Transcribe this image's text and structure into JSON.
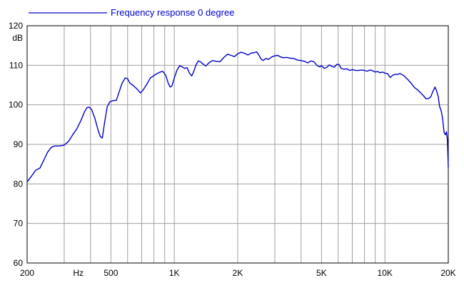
{
  "chart_data": {
    "type": "line",
    "title": "",
    "xlabel": "",
    "ylabel": "dB",
    "x_scale": "log",
    "xlim": [
      200,
      20000
    ],
    "ylim": [
      60,
      120
    ],
    "grid": true,
    "legend_position": "top-left",
    "x_tick_values": [
      200,
      500,
      1000,
      2000,
      5000,
      10000,
      20000
    ],
    "x_tick_labels": [
      "200",
      "500",
      "1K",
      "2K",
      "5K",
      "10K",
      "20K"
    ],
    "x_unit_label": "Hz",
    "x_unit_position": 350,
    "x_minor_gridlines": [
      300,
      400,
      600,
      700,
      800,
      900,
      3000,
      4000,
      6000,
      7000,
      8000,
      9000
    ],
    "y_tick_values": [
      60,
      70,
      80,
      90,
      100,
      110,
      120
    ],
    "y_tick_labels": [
      "60",
      "70",
      "80",
      "90",
      "100",
      "110",
      "120"
    ],
    "colors": {
      "line": "#0000cc",
      "grid": "#a0a0a0",
      "frame": "#000000"
    },
    "series": [
      {
        "name": "Frequency response 0 degree",
        "color": "#0000cc",
        "points": [
          [
            200,
            80.5
          ],
          [
            210,
            82
          ],
          [
            220,
            83.5
          ],
          [
            230,
            84
          ],
          [
            240,
            86
          ],
          [
            250,
            88
          ],
          [
            260,
            89.2
          ],
          [
            270,
            89.6
          ],
          [
            285,
            89.6
          ],
          [
            300,
            89.8
          ],
          [
            315,
            90.8
          ],
          [
            330,
            92.5
          ],
          [
            345,
            94
          ],
          [
            360,
            96
          ],
          [
            375,
            98.3
          ],
          [
            385,
            99.3
          ],
          [
            395,
            99.4
          ],
          [
            405,
            98.8
          ],
          [
            420,
            96.5
          ],
          [
            435,
            93.5
          ],
          [
            445,
            92
          ],
          [
            455,
            91.6
          ],
          [
            465,
            95
          ],
          [
            480,
            99.5
          ],
          [
            495,
            100.8
          ],
          [
            515,
            101.1
          ],
          [
            530,
            101.1
          ],
          [
            545,
            103
          ],
          [
            565,
            105.5
          ],
          [
            585,
            106.8
          ],
          [
            600,
            106.6
          ],
          [
            615,
            105.5
          ],
          [
            640,
            104.8
          ],
          [
            665,
            104
          ],
          [
            690,
            103
          ],
          [
            710,
            103.7
          ],
          [
            740,
            105.2
          ],
          [
            770,
            106.8
          ],
          [
            810,
            107.6
          ],
          [
            850,
            108.2
          ],
          [
            880,
            108.5
          ],
          [
            910,
            107.5
          ],
          [
            935,
            105.5
          ],
          [
            955,
            104.5
          ],
          [
            975,
            104.8
          ],
          [
            1000,
            106.8
          ],
          [
            1030,
            108.8
          ],
          [
            1060,
            109.9
          ],
          [
            1090,
            109.6
          ],
          [
            1120,
            109.2
          ],
          [
            1150,
            109.4
          ],
          [
            1180,
            108
          ],
          [
            1210,
            107.3
          ],
          [
            1240,
            108.6
          ],
          [
            1270,
            110.2
          ],
          [
            1300,
            111.1
          ],
          [
            1330,
            110.9
          ],
          [
            1370,
            110.3
          ],
          [
            1410,
            109.8
          ],
          [
            1460,
            110.6
          ],
          [
            1520,
            111.2
          ],
          [
            1580,
            111
          ],
          [
            1650,
            110.9
          ],
          [
            1720,
            112
          ],
          [
            1790,
            112.8
          ],
          [
            1860,
            112.5
          ],
          [
            1930,
            112.2
          ],
          [
            2000,
            112.9
          ],
          [
            2080,
            113.3
          ],
          [
            2160,
            113
          ],
          [
            2240,
            112.6
          ],
          [
            2320,
            113.1
          ],
          [
            2400,
            113.2
          ],
          [
            2460,
            113.4
          ],
          [
            2520,
            112.6
          ],
          [
            2580,
            111.6
          ],
          [
            2640,
            111.2
          ],
          [
            2720,
            111.7
          ],
          [
            2800,
            111.5
          ],
          [
            2900,
            112.1
          ],
          [
            3000,
            112.4
          ],
          [
            3100,
            112.5
          ],
          [
            3200,
            112.1
          ],
          [
            3300,
            111.9
          ],
          [
            3420,
            112
          ],
          [
            3550,
            111.8
          ],
          [
            3700,
            111.7
          ],
          [
            3850,
            111.3
          ],
          [
            4000,
            111.2
          ],
          [
            4150,
            111
          ],
          [
            4300,
            110.6
          ],
          [
            4450,
            111.1
          ],
          [
            4600,
            110.9
          ],
          [
            4750,
            110
          ],
          [
            4900,
            109.6
          ],
          [
            5000,
            109.9
          ],
          [
            5150,
            109.2
          ],
          [
            5300,
            109.5
          ],
          [
            5450,
            110.1
          ],
          [
            5600,
            109.7
          ],
          [
            5750,
            109.5
          ],
          [
            5900,
            110.2
          ],
          [
            6050,
            110.2
          ],
          [
            6200,
            109.2
          ],
          [
            6400,
            109
          ],
          [
            6600,
            109.1
          ],
          [
            6800,
            108.7
          ],
          [
            7000,
            108.9
          ],
          [
            7250,
            108.7
          ],
          [
            7500,
            108.7
          ],
          [
            7750,
            108.8
          ],
          [
            8000,
            108.7
          ],
          [
            8250,
            108.5
          ],
          [
            8500,
            108.8
          ],
          [
            8750,
            108.6
          ],
          [
            9000,
            108.3
          ],
          [
            9250,
            108.4
          ],
          [
            9500,
            108.1
          ],
          [
            9750,
            108.3
          ],
          [
            10000,
            108
          ],
          [
            10300,
            107.9
          ],
          [
            10600,
            106.9
          ],
          [
            10900,
            107.5
          ],
          [
            11200,
            107.7
          ],
          [
            11500,
            107.7
          ],
          [
            11800,
            107.9
          ],
          [
            12100,
            107.6
          ],
          [
            12400,
            107.2
          ],
          [
            12800,
            106.5
          ],
          [
            13300,
            105.5
          ],
          [
            13800,
            104.4
          ],
          [
            14300,
            103.8
          ],
          [
            14800,
            103
          ],
          [
            15300,
            102.2
          ],
          [
            15700,
            101.5
          ],
          [
            16100,
            101.6
          ],
          [
            16500,
            102
          ],
          [
            16900,
            103.4
          ],
          [
            17300,
            104.5
          ],
          [
            17600,
            103.5
          ],
          [
            17900,
            102.2
          ],
          [
            18200,
            99.5
          ],
          [
            18500,
            98.5
          ],
          [
            18800,
            96.5
          ],
          [
            19100,
            93
          ],
          [
            19400,
            92.4
          ],
          [
            19600,
            93.2
          ],
          [
            19800,
            91.3
          ],
          [
            20000,
            84.2
          ]
        ]
      }
    ]
  }
}
